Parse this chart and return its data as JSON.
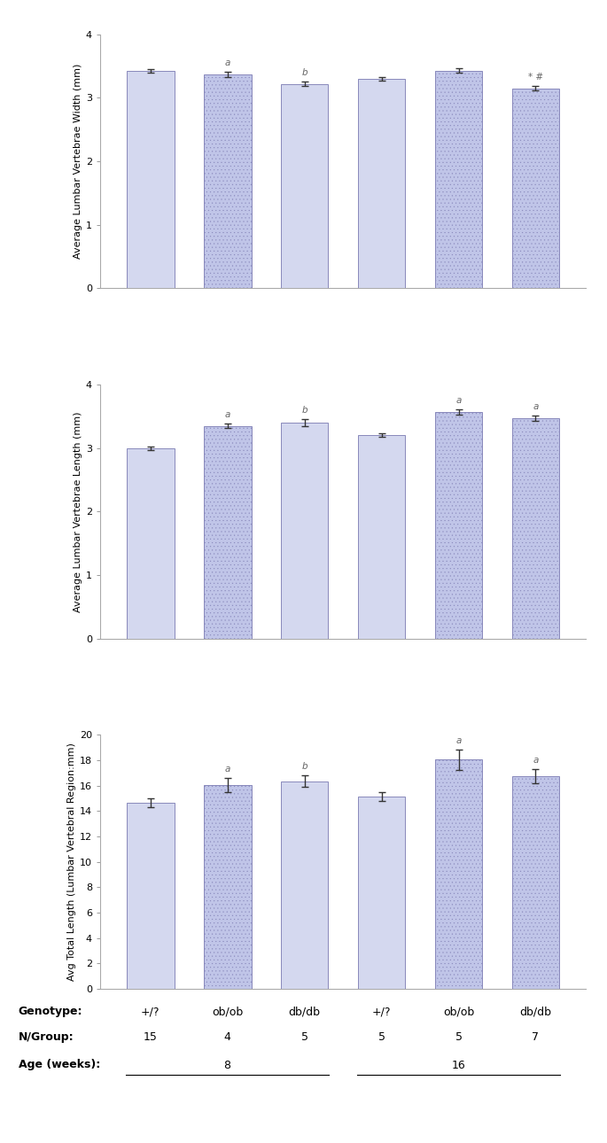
{
  "subplot1": {
    "ylabel": "Average Lumbar Vertebrae Width (mm)",
    "ylim": [
      0,
      4
    ],
    "yticks": [
      0,
      1,
      2,
      3,
      4
    ],
    "values": [
      3.42,
      3.37,
      3.22,
      3.3,
      3.43,
      3.15
    ],
    "errors": [
      0.03,
      0.04,
      0.04,
      0.03,
      0.03,
      0.04
    ],
    "annotations": [
      "",
      "a",
      "b",
      "",
      "",
      "* #"
    ],
    "annot_italic": [
      false,
      true,
      true,
      false,
      false,
      false
    ]
  },
  "subplot2": {
    "ylabel": "Average Lumbar Vertebrae Length (mm)",
    "ylim": [
      0,
      4
    ],
    "yticks": [
      0,
      1,
      2,
      3,
      4
    ],
    "values": [
      3.0,
      3.35,
      3.4,
      3.2,
      3.57,
      3.47
    ],
    "errors": [
      0.03,
      0.04,
      0.05,
      0.03,
      0.04,
      0.04
    ],
    "annotations": [
      "",
      "a",
      "b",
      "",
      "a",
      "a"
    ],
    "annot_italic": [
      false,
      true,
      true,
      false,
      true,
      true
    ]
  },
  "subplot3": {
    "ylabel": "Avg Total Length (Lumbar Vertebral Region:mm)",
    "ylim": [
      0,
      20
    ],
    "yticks": [
      0,
      2,
      4,
      6,
      8,
      10,
      12,
      14,
      16,
      18,
      20
    ],
    "values": [
      14.65,
      16.05,
      16.35,
      15.15,
      18.05,
      16.75
    ],
    "errors": [
      0.35,
      0.55,
      0.45,
      0.35,
      0.8,
      0.55
    ],
    "annotations": [
      "",
      "a",
      "b",
      "",
      "a",
      "a"
    ],
    "annot_italic": [
      false,
      true,
      true,
      false,
      true,
      true
    ]
  },
  "bar_colors_solid": "#d4d8ef",
  "bar_colors_hatched": "#c0c5e8",
  "bar_hatched": [
    false,
    true,
    false,
    false,
    true,
    true
  ],
  "bar_width": 0.62,
  "x_positions": [
    1,
    2,
    3,
    4,
    5,
    6
  ],
  "footer": {
    "genotype_label": "Genotype:",
    "ngroup_label": "N/Group:",
    "age_label": "Age (weeks):",
    "genotypes": [
      "+/?",
      "ob/ob",
      "db/db",
      "+/?",
      "ob/ob",
      "db/db"
    ],
    "ngroups": [
      "15",
      "4",
      "5",
      "5",
      "5",
      "7"
    ],
    "age_values": [
      "8",
      "16"
    ]
  },
  "edge_color": "#8888bb",
  "annot_color": "#666666",
  "annot_fontsize": 7.5,
  "ylabel_fontsize": 8,
  "tick_fontsize": 8,
  "footer_fontsize": 9
}
